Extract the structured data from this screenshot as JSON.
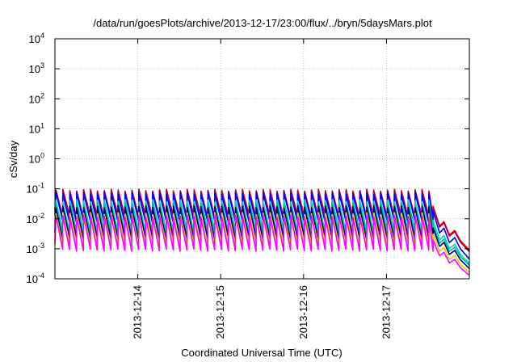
{
  "chart_data": {
    "type": "line",
    "title": "/data/run/goesPlots/archive/2013-12-17/23:00/flux/../bryn/5daysMars.plot",
    "xlabel": "Coordinated Universal Time (UTC)",
    "ylabel": "cSv/day",
    "y_scale": "log",
    "ylim": [
      0.0001,
      10000
    ],
    "y_ticks": [
      {
        "value": 0.0001,
        "base": "10",
        "exp": "-4"
      },
      {
        "value": 0.001,
        "base": "10",
        "exp": "-3"
      },
      {
        "value": 0.01,
        "base": "10",
        "exp": "-2"
      },
      {
        "value": 0.1,
        "base": "10",
        "exp": "-1"
      },
      {
        "value": 1,
        "base": "10",
        "exp": "0"
      },
      {
        "value": 10,
        "base": "10",
        "exp": "1"
      },
      {
        "value": 100,
        "base": "10",
        "exp": "2"
      },
      {
        "value": 1000,
        "base": "10",
        "exp": "3"
      },
      {
        "value": 10000,
        "base": "10",
        "exp": "4"
      }
    ],
    "xlim": [
      "2013-12-13T00:00",
      "2013-12-18T00:00"
    ],
    "x_ticks": [
      {
        "value": "2013-12-14T00:00",
        "label": "2013-12-14"
      },
      {
        "value": "2013-12-15T00:00",
        "label": "2013-12-15"
      },
      {
        "value": "2013-12-16T00:00",
        "label": "2013-12-16"
      },
      {
        "value": "2013-12-17T00:00",
        "label": "2013-12-17"
      }
    ],
    "grid": true,
    "sawtooth_period_hours": 2,
    "decay_start": "2013-12-17T13:30",
    "series": [
      {
        "color": "#ff0000",
        "peak": 0.09,
        "trough": 0.012,
        "tail_end": 0.0009
      },
      {
        "color": "#a00050",
        "peak": 0.085,
        "trough": 0.011,
        "tail_end": 0.0008
      },
      {
        "color": "#0000ff",
        "peak": 0.07,
        "trough": 0.008,
        "tail_end": 0.00045
      },
      {
        "color": "#00d0d0",
        "peak": 0.04,
        "trough": 0.004,
        "tail_end": 0.00032
      },
      {
        "color": "#00c080",
        "peak": 0.03,
        "trough": 0.0028,
        "tail_end": 0.00028
      },
      {
        "color": "#000080",
        "peak": 0.025,
        "trough": 0.0022,
        "tail_end": 0.00022
      },
      {
        "color": "#d0d000",
        "peak": 0.015,
        "trough": 0.0014,
        "tail_end": 0.00016
      },
      {
        "color": "#ff00ff",
        "peak": 0.012,
        "trough": 0.0009,
        "tail_end": 0.00013
      }
    ]
  }
}
